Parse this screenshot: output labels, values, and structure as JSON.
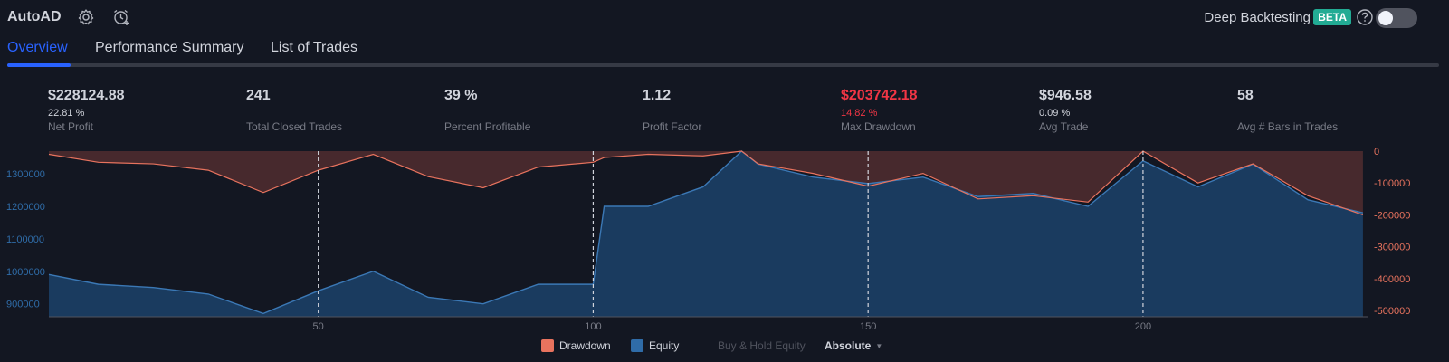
{
  "app": {
    "title": "AutoAD",
    "icons": [
      "gear-icon",
      "alarm-add-icon"
    ]
  },
  "deep_backtesting": {
    "label": "Deep Backtesting",
    "badge": "BETA",
    "enabled": false
  },
  "tabs": [
    {
      "label": "Overview",
      "active": true
    },
    {
      "label": "Performance Summary",
      "active": false
    },
    {
      "label": "List of Trades",
      "active": false
    }
  ],
  "metrics": [
    {
      "value": "$228124.88",
      "pct": "22.81 %",
      "label": "Net Profit",
      "negative": false
    },
    {
      "value": "241",
      "pct": "",
      "label": "Total Closed Trades",
      "negative": false
    },
    {
      "value": "39 %",
      "pct": "",
      "label": "Percent Profitable",
      "negative": false
    },
    {
      "value": "1.12",
      "pct": "",
      "label": "Profit Factor",
      "negative": false
    },
    {
      "value": "$203742.18",
      "pct": "14.82 %",
      "label": "Max Drawdown",
      "negative": true
    },
    {
      "value": "$946.58",
      "pct": "0.09 %",
      "label": "Avg Trade",
      "negative": false
    },
    {
      "value": "58",
      "pct": "",
      "label": "Avg # Bars in Trades",
      "negative": false
    }
  ],
  "legend": {
    "drawdown": "Drawdown",
    "equity": "Equity",
    "buy_hold": "Buy & Hold Equity",
    "mode": "Absolute"
  },
  "colors": {
    "accent": "#2962ff",
    "equity": "#2f6ca8",
    "drawdown": "#e8735e",
    "negative": "#f23645",
    "badge": "#22ab94"
  },
  "chart_data": {
    "type": "area",
    "x_ticks": [
      50,
      100,
      150,
      200
    ],
    "left_axis": {
      "ticks": [
        1300000,
        1200000,
        1100000,
        1000000,
        900000
      ],
      "ylim": [
        860000,
        1370000
      ]
    },
    "right_axis": {
      "ticks": [
        0,
        -100000,
        -200000,
        -300000,
        -400000,
        -500000
      ],
      "ylim": [
        -520000,
        0
      ]
    },
    "x": [
      1,
      10,
      20,
      30,
      40,
      50,
      60,
      70,
      80,
      90,
      100,
      102,
      110,
      120,
      127,
      130,
      140,
      150,
      160,
      170,
      180,
      190,
      200,
      210,
      220,
      230,
      240
    ],
    "series": [
      {
        "name": "Equity",
        "axis": "left",
        "values": [
          990000,
          960000,
          950000,
          930000,
          870000,
          940000,
          1000000,
          920000,
          900000,
          960000,
          960000,
          1200000,
          1200000,
          1260000,
          1370000,
          1330000,
          1290000,
          1270000,
          1290000,
          1230000,
          1240000,
          1200000,
          1340000,
          1260000,
          1330000,
          1220000,
          1180000
        ]
      },
      {
        "name": "Drawdown",
        "axis": "right",
        "values": [
          -10000,
          -35000,
          -40000,
          -60000,
          -130000,
          -60000,
          -10000,
          -80000,
          -115000,
          -50000,
          -35000,
          -20000,
          -10000,
          -15000,
          0,
          -40000,
          -70000,
          -110000,
          -70000,
          -150000,
          -140000,
          -160000,
          0,
          -100000,
          -40000,
          -140000,
          -200000
        ]
      }
    ]
  }
}
